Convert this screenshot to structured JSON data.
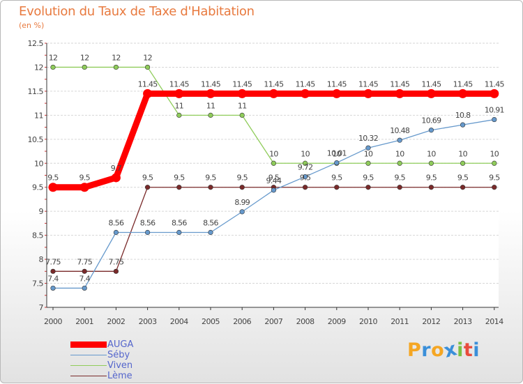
{
  "title": "Evolution du Taux de Taxe d'Habitation",
  "subtitle": "(en %)",
  "logo": {
    "text": "Proxiti",
    "letters": [
      "P",
      "r",
      "o",
      "x",
      "i",
      "t",
      "i"
    ],
    "colors": [
      "#f5a623",
      "#3a8fd9",
      "#f5a623",
      "#3a8fd9",
      "#7ac143",
      "#e84c3d",
      "#3a8fd9"
    ]
  },
  "chart_data": {
    "type": "line",
    "title": "Evolution du Taux de Taxe d'Habitation",
    "subtitle": "(en %)",
    "xlabel": "",
    "ylabel": "",
    "ylim": [
      7,
      12.5
    ],
    "yticks": [
      "7",
      "7.5",
      "8",
      "8.5",
      "9",
      "9.5",
      "10",
      "10.5",
      "11",
      "11.5",
      "12",
      "12.5"
    ],
    "categories": [
      "2000",
      "2001",
      "2002",
      "2003",
      "2004",
      "2005",
      "2006",
      "2007",
      "2008",
      "2009",
      "2010",
      "2011",
      "2012",
      "2013",
      "2014"
    ],
    "grid": "horizontal",
    "legend_position": "bottom-left",
    "series": [
      {
        "name": "AUGA",
        "color": "#ff0000",
        "values": [
          9.5,
          9.5,
          9.7,
          11.45,
          11.45,
          11.45,
          11.45,
          11.45,
          11.45,
          11.45,
          11.45,
          11.45,
          11.45,
          11.45,
          11.45
        ],
        "labels": [
          "9.5",
          "9.5",
          "9.7",
          "11.45",
          "11.45",
          "11.45",
          "11.45",
          "11.45",
          "11.45",
          "11.45",
          "11.45",
          "11.45",
          "11.45",
          "11.45",
          "11.45"
        ]
      },
      {
        "name": "Séby",
        "color": "#6699cc",
        "values": [
          7.4,
          7.4,
          8.56,
          8.56,
          8.56,
          8.56,
          8.99,
          9.44,
          9.72,
          10.01,
          10.32,
          10.48,
          10.69,
          10.8,
          10.91
        ],
        "labels": [
          "7.4",
          "7.4",
          "8.56",
          "8.56",
          "8.56",
          "8.56",
          "8.99",
          "9.44",
          "9.72",
          "10.01",
          "10.32",
          "10.48",
          "10.69",
          "10.8",
          "10.91"
        ]
      },
      {
        "name": "Viven",
        "color": "#8fcc5a",
        "values": [
          12,
          12,
          12,
          12,
          11,
          11,
          11,
          10,
          10,
          10,
          10,
          10,
          10,
          10,
          10
        ],
        "labels": [
          "12",
          "12",
          "12",
          "12",
          "11",
          "11",
          "11",
          "10",
          "10",
          "10",
          "10",
          "10",
          "10",
          "10",
          "10"
        ]
      },
      {
        "name": "Lème",
        "color": "#7a2a2a",
        "values": [
          7.75,
          7.75,
          7.75,
          9.5,
          9.5,
          9.5,
          9.5,
          9.5,
          9.5,
          9.5,
          9.5,
          9.5,
          9.5,
          9.5,
          9.5
        ],
        "labels": [
          "7.75",
          "7.75",
          "7.75",
          "9.5",
          "9.5",
          "9.5",
          "9.5",
          "9.5",
          "9.5",
          "9.5",
          "9.5",
          "9.5",
          "9.5",
          "9.5",
          "9.5"
        ]
      }
    ]
  }
}
